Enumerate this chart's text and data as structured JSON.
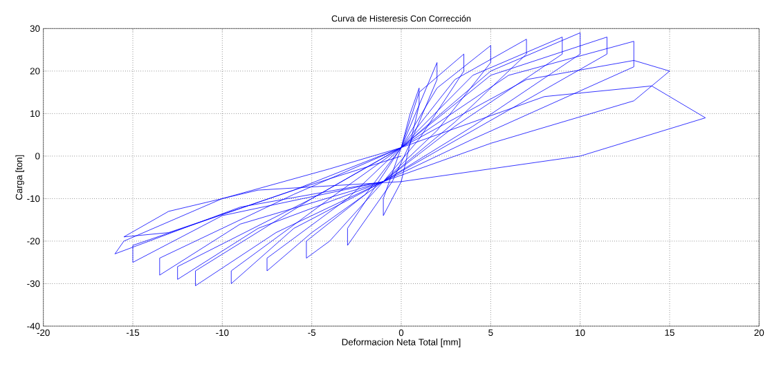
{
  "chart_data": {
    "type": "line",
    "title": "Curva de Histeresis Con Corrección",
    "xlabel": "Deformacion Neta Total [mm]",
    "ylabel": "Carga [ton]",
    "xlim": [
      -20,
      20
    ],
    "ylim": [
      -40,
      30
    ],
    "xticks": [
      -20,
      -15,
      -10,
      -5,
      0,
      5,
      10,
      15,
      20
    ],
    "yticks": [
      -40,
      -30,
      -20,
      -10,
      0,
      10,
      20,
      30
    ],
    "grid": true,
    "line_style": "solid",
    "marker": "none",
    "series": [
      {
        "color": "#0000ff",
        "x": [
          0,
          0.5,
          1,
          1,
          0,
          -1,
          -1,
          0,
          2,
          2,
          0.5,
          -0.5,
          -2.5,
          -3,
          -3,
          0,
          1,
          3.5,
          3.5,
          1,
          -1,
          -4,
          -5.3,
          -5.3,
          -2,
          0,
          2,
          5,
          5,
          2,
          -1,
          -5,
          -7.5,
          -7.5,
          -3,
          0,
          3,
          7,
          7,
          3,
          -1,
          -6,
          -9.5,
          -9.5,
          -4,
          0,
          4,
          9,
          9,
          3,
          -1,
          -7,
          -11.5,
          -11.5,
          -5,
          0,
          5,
          10,
          10,
          4,
          -1,
          -8,
          -12.5,
          -12.5,
          -5,
          0,
          5,
          11.5,
          11.5,
          4,
          -1,
          -9,
          -13.5,
          -13.5,
          -6,
          0,
          6,
          13,
          13,
          4,
          -1,
          -10,
          -15,
          -15,
          -6,
          0,
          7,
          13,
          15,
          13,
          5,
          -1,
          -9,
          -16,
          -15.5,
          -10,
          -4,
          0,
          8,
          14,
          17,
          10,
          0,
          -8,
          -13,
          -15.5,
          -13,
          -6,
          0
        ],
        "values": [
          2,
          10,
          16,
          12,
          -6,
          -14,
          -10,
          2,
          22,
          18,
          3,
          -6,
          -18,
          -21,
          -17,
          2,
          15,
          24,
          20,
          4,
          -6,
          -20,
          -24,
          -20,
          -9,
          2,
          16,
          26,
          22,
          6,
          -6,
          -18,
          -27,
          -24,
          -10,
          2,
          18,
          27.5,
          24,
          8,
          -6,
          -17,
          -30,
          -27,
          -10,
          2,
          19,
          28,
          24,
          7,
          -6,
          -18,
          -30.5,
          -27,
          -10,
          2,
          20,
          29,
          24,
          7,
          -6,
          -17,
          -29,
          -26,
          -10,
          2,
          19,
          28,
          24,
          6,
          -6,
          -16,
          -28,
          -24,
          -9,
          2,
          19,
          27,
          21,
          4,
          -6,
          -14,
          -25,
          -21,
          -8,
          2,
          18,
          22.5,
          20,
          13,
          3,
          -6,
          -12,
          -23,
          -20,
          -10,
          -3,
          2,
          14,
          16.5,
          9,
          0,
          -6,
          -8,
          -13,
          -19,
          -18,
          -8,
          0
        ]
      }
    ]
  }
}
